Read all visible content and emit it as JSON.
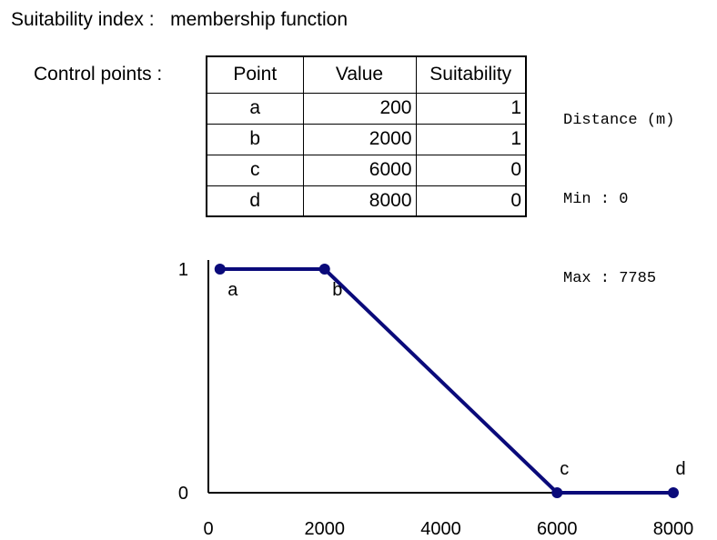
{
  "title": "Suitability index :   membership function",
  "control_points_label": "Control points :",
  "table": {
    "headers": [
      "Point",
      "Value",
      "Suitability"
    ],
    "rows": [
      {
        "point": "a",
        "value": "200",
        "suitability": "1"
      },
      {
        "point": "b",
        "value": "2000",
        "suitability": "1"
      },
      {
        "point": "c",
        "value": "6000",
        "suitability": "0"
      },
      {
        "point": "d",
        "value": "8000",
        "suitability": "0"
      }
    ]
  },
  "distance": {
    "title": "Distance (m)",
    "min_text": "Min : 0",
    "max_text": "Max : 7785"
  },
  "colors": {
    "line": "#0a0a7a",
    "axis": "#000000"
  },
  "chart_data": {
    "type": "line",
    "x": [
      200,
      2000,
      6000,
      8000
    ],
    "y": [
      1,
      1,
      0,
      0
    ],
    "point_labels": [
      "a",
      "b",
      "c",
      "d"
    ],
    "xlim": [
      0,
      8000
    ],
    "ylim": [
      0,
      1
    ],
    "x_ticks": [
      0,
      2000,
      4000,
      6000,
      8000
    ],
    "x_tick_labels": [
      "0",
      "2000",
      "4000",
      "6000",
      "8000"
    ],
    "y_ticks": [
      0,
      1
    ],
    "y_tick_labels": [
      "0",
      "1"
    ],
    "title": "",
    "xlabel": "",
    "ylabel": "",
    "grid": false
  }
}
